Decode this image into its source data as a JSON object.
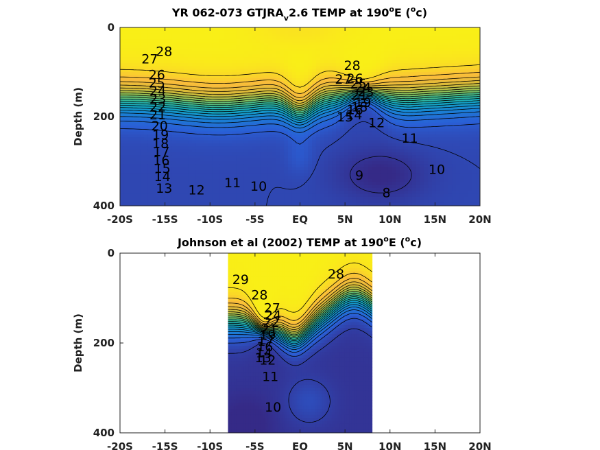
{
  "colors": {
    "colormap": [
      "#352a87",
      "#2a5fd6",
      "#1884d4",
      "#13a6c3",
      "#34b896",
      "#8bbf57",
      "#d6ba38",
      "#fbbc3b",
      "#f9fb0e"
    ],
    "contour_line": "#000000",
    "axis": "#222222",
    "no_data": "#ffffff"
  },
  "chart_data": [
    {
      "type": "heatmap",
      "title_prefix": "YR 062-073 GTJRA",
      "title_subscript": "v",
      "title_mid": "2.6 TEMP at 190",
      "title_deg": "o",
      "title_unit_open": "E (",
      "title_unit_sup": "o",
      "title_unit_close": "c)",
      "ylabel": "Depth (m)",
      "xlabel": "",
      "xlim": [
        -20,
        20
      ],
      "ylim": [
        0,
        400
      ],
      "y_reversed": true,
      "x_ticks": [
        -20,
        -15,
        -10,
        -5,
        0,
        5,
        10,
        15,
        20
      ],
      "x_tick_labels": [
        "-20S",
        "-15S",
        "-10S",
        "-5S",
        "EQ",
        "5N",
        "10N",
        "15N",
        "20N"
      ],
      "y_ticks": [
        0,
        200,
        400
      ],
      "y_tick_labels": [
        "0",
        "200",
        "400"
      ],
      "data_extent_x": [
        -20,
        20
      ],
      "contour_levels": [
        8,
        9,
        10,
        11,
        12,
        13,
        14,
        15,
        16,
        17,
        18,
        19,
        20,
        21,
        22,
        23,
        24,
        25,
        26,
        27,
        28
      ],
      "contour_labels": [
        {
          "text": "28",
          "x": -15.1,
          "depth": 55
        },
        {
          "text": "27",
          "x": -16.7,
          "depth": 72
        },
        {
          "text": "26",
          "x": -15.9,
          "depth": 108
        },
        {
          "text": "25",
          "x": -15.9,
          "depth": 126
        },
        {
          "text": "24",
          "x": -15.8,
          "depth": 144
        },
        {
          "text": "23",
          "x": -15.8,
          "depth": 162
        },
        {
          "text": "22",
          "x": -15.8,
          "depth": 180
        },
        {
          "text": "21",
          "x": -15.8,
          "depth": 198
        },
        {
          "text": "20",
          "x": -15.6,
          "depth": 222
        },
        {
          "text": "19",
          "x": -15.5,
          "depth": 242
        },
        {
          "text": "18",
          "x": -15.5,
          "depth": 262
        },
        {
          "text": "17",
          "x": -15.4,
          "depth": 280
        },
        {
          "text": "16",
          "x": -15.4,
          "depth": 300
        },
        {
          "text": "15",
          "x": -15.3,
          "depth": 318
        },
        {
          "text": "14",
          "x": -15.3,
          "depth": 336
        },
        {
          "text": "13",
          "x": -15.1,
          "depth": 362
        },
        {
          "text": "12",
          "x": -11.5,
          "depth": 366
        },
        {
          "text": "11",
          "x": -7.5,
          "depth": 350
        },
        {
          "text": "10",
          "x": -4.6,
          "depth": 358
        },
        {
          "text": "28",
          "x": 5.8,
          "depth": 87
        },
        {
          "text": "27",
          "x": 4.8,
          "depth": 118
        },
        {
          "text": "26",
          "x": 6.1,
          "depth": 116
        },
        {
          "text": "25",
          "x": 6.5,
          "depth": 128
        },
        {
          "text": "24",
          "x": 7.0,
          "depth": 136
        },
        {
          "text": "23",
          "x": 7.3,
          "depth": 146
        },
        {
          "text": "21",
          "x": 6.6,
          "depth": 154
        },
        {
          "text": "19",
          "x": 7.0,
          "depth": 170
        },
        {
          "text": "18",
          "x": 6.6,
          "depth": 180
        },
        {
          "text": "16",
          "x": 6.1,
          "depth": 186
        },
        {
          "text": "15",
          "x": 5.0,
          "depth": 202
        },
        {
          "text": "14",
          "x": 6.0,
          "depth": 198
        },
        {
          "text": "12",
          "x": 8.5,
          "depth": 215
        },
        {
          "text": "11",
          "x": 12.2,
          "depth": 250
        },
        {
          "text": "10",
          "x": 15.2,
          "depth": 320
        },
        {
          "text": "9",
          "x": 6.6,
          "depth": 333
        },
        {
          "text": "8",
          "x": 9.6,
          "depth": 372
        }
      ]
    },
    {
      "type": "heatmap",
      "title_prefix": "Johnson et al (2002) TEMP at 190",
      "title_subscript": "",
      "title_mid": "",
      "title_deg": "o",
      "title_unit_open": "E (",
      "title_unit_sup": "o",
      "title_unit_close": "c)",
      "ylabel": "Depth (m)",
      "xlabel": "",
      "xlim": [
        -20,
        20
      ],
      "ylim": [
        0,
        400
      ],
      "y_reversed": true,
      "x_ticks": [
        -20,
        -15,
        -10,
        -5,
        0,
        5,
        10,
        15,
        20
      ],
      "x_tick_labels": [
        "-20S",
        "-15S",
        "-10S",
        "-5S",
        "EQ",
        "5N",
        "10N",
        "15N",
        "20N"
      ],
      "y_ticks": [
        0,
        200,
        400
      ],
      "y_tick_labels": [
        "0",
        "200",
        "400"
      ],
      "data_extent_x": [
        -8,
        8
      ],
      "contour_levels": [
        10,
        11,
        12,
        13,
        14,
        15,
        16,
        17,
        18,
        19,
        20,
        21,
        22,
        23,
        24,
        25,
        26,
        27,
        28,
        29
      ],
      "contour_labels": [
        {
          "text": "29",
          "x": -6.6,
          "depth": 60
        },
        {
          "text": "28",
          "x": 4.0,
          "depth": 48
        },
        {
          "text": "28",
          "x": -4.5,
          "depth": 95
        },
        {
          "text": "27",
          "x": -3.1,
          "depth": 124
        },
        {
          "text": "24",
          "x": -3.0,
          "depth": 140
        },
        {
          "text": "22",
          "x": -3.2,
          "depth": 156
        },
        {
          "text": "21",
          "x": -3.4,
          "depth": 170
        },
        {
          "text": "19",
          "x": -3.6,
          "depth": 184
        },
        {
          "text": "17",
          "x": -3.8,
          "depth": 198
        },
        {
          "text": "16",
          "x": -3.9,
          "depth": 210
        },
        {
          "text": "14",
          "x": -4.0,
          "depth": 224
        },
        {
          "text": "13",
          "x": -4.1,
          "depth": 234
        },
        {
          "text": "12",
          "x": -3.6,
          "depth": 240
        },
        {
          "text": "11",
          "x": -3.3,
          "depth": 276
        },
        {
          "text": "10",
          "x": -3.0,
          "depth": 344
        }
      ]
    }
  ]
}
